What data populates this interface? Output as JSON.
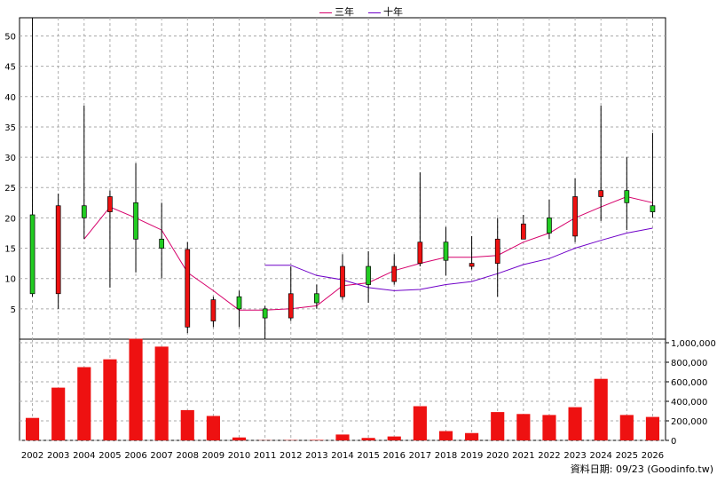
{
  "legend": [
    {
      "label": "三年",
      "color": "#d6006b"
    },
    {
      "label": "十年",
      "color": "#6f00c8"
    }
  ],
  "source_text": "資料日期: 09/23  (Goodinfo.tw)",
  "chart_data": [
    {
      "type": "candlestick",
      "categories": [
        "2002",
        "2003",
        "2004",
        "2005",
        "2006",
        "2007",
        "2008",
        "2009",
        "2010",
        "2011",
        "2012",
        "2013",
        "2014",
        "2015",
        "2016",
        "2017",
        "2018",
        "2019",
        "2020",
        "2021",
        "2022",
        "2023",
        "2024",
        "2025",
        "2026"
      ],
      "ylim": [
        0,
        53
      ],
      "yticks": [
        5,
        10,
        15,
        20,
        25,
        30,
        35,
        40,
        45,
        50
      ],
      "grid": true,
      "up_color": "#22cc22",
      "down_color": "#ee1111",
      "ohlc": [
        {
          "o": 7.5,
          "h": 53,
          "l": 7,
          "c": 20.5
        },
        {
          "o": 22,
          "h": 24,
          "l": 5,
          "c": 7.5
        },
        {
          "o": 20,
          "h": 38.5,
          "l": 16.5,
          "c": 22
        },
        {
          "o": 23.5,
          "h": 24.5,
          "l": 8.5,
          "c": 21
        },
        {
          "o": 16.5,
          "h": 29,
          "l": 11,
          "c": 22.5
        },
        {
          "o": 15,
          "h": 22.5,
          "l": 10,
          "c": 16.5
        },
        {
          "o": 14.8,
          "h": 16,
          "l": 1,
          "c": 2
        },
        {
          "o": 6.5,
          "h": 7,
          "l": 2,
          "c": 3
        },
        {
          "o": 5,
          "h": 8,
          "l": 2,
          "c": 7
        },
        {
          "o": 3.5,
          "h": 5.5,
          "l": 0,
          "c": 5
        },
        {
          "o": 7.5,
          "h": 12,
          "l": 3,
          "c": 3.5
        },
        {
          "o": 6,
          "h": 9,
          "l": 5,
          "c": 7.5
        },
        {
          "o": 12,
          "h": 14,
          "l": 6.5,
          "c": 7
        },
        {
          "o": 9,
          "h": 14.5,
          "l": 6,
          "c": 12
        },
        {
          "o": 12,
          "h": 14,
          "l": 9,
          "c": 9.5
        },
        {
          "o": 16,
          "h": 27.5,
          "l": 12,
          "c": 12.5
        },
        {
          "o": 13,
          "h": 18.5,
          "l": 10.5,
          "c": 16
        },
        {
          "o": 12.5,
          "h": 17,
          "l": 11.5,
          "c": 12
        },
        {
          "o": 16.5,
          "h": 20,
          "l": 7,
          "c": 12.5
        },
        {
          "o": 19,
          "h": 20.5,
          "l": 16.5,
          "c": 16.5
        },
        {
          "o": 17.5,
          "h": 23,
          "l": 16.5,
          "c": 20
        },
        {
          "o": 23.5,
          "h": 26.5,
          "l": 16,
          "c": 17
        },
        {
          "o": 24.5,
          "h": 38.5,
          "l": 19.5,
          "c": 23.5
        },
        {
          "o": 22.5,
          "h": 30,
          "l": 18,
          "c": 24.5
        },
        {
          "o": 21,
          "h": 34,
          "l": 20,
          "c": 22
        }
      ],
      "series": [
        {
          "name": "三年",
          "color": "#d6006b",
          "values": [
            null,
            null,
            16.5,
            21.8,
            20,
            18,
            11,
            8,
            4.8,
            4.8,
            5,
            5.5,
            8.8,
            9.3,
            11.3,
            12.5,
            13.5,
            13.5,
            13.8,
            16,
            17.5,
            20,
            21.8,
            23.5,
            22.5
          ]
        },
        {
          "name": "十年",
          "color": "#6f00c8",
          "values": [
            null,
            null,
            null,
            null,
            null,
            null,
            null,
            null,
            null,
            12.2,
            12.2,
            10.5,
            9.8,
            8.5,
            8,
            8.2,
            9,
            9.5,
            10.8,
            12.3,
            13.3,
            15,
            16.3,
            17.5,
            18.3
          ]
        }
      ]
    },
    {
      "type": "bar",
      "categories": [
        "2002",
        "2003",
        "2004",
        "2005",
        "2006",
        "2007",
        "2008",
        "2009",
        "2010",
        "2011",
        "2012",
        "2013",
        "2014",
        "2015",
        "2016",
        "2017",
        "2018",
        "2019",
        "2020",
        "2021",
        "2022",
        "2023",
        "2024",
        "2025",
        "2026"
      ],
      "values": [
        230000,
        540000,
        750000,
        830000,
        1040000,
        960000,
        310000,
        250000,
        30000,
        2000,
        3000,
        5000,
        60000,
        25000,
        40000,
        350000,
        95000,
        75000,
        290000,
        270000,
        260000,
        340000,
        630000,
        260000,
        240000
      ],
      "color": "#ee1111",
      "ylim": [
        0,
        1000000
      ],
      "yticks": [
        0,
        200000,
        400000,
        600000,
        800000,
        1000000
      ],
      "ytick_labels": [
        "0",
        "200,000",
        "400,000",
        "600,000",
        "800,000",
        "1,000,000"
      ]
    }
  ]
}
